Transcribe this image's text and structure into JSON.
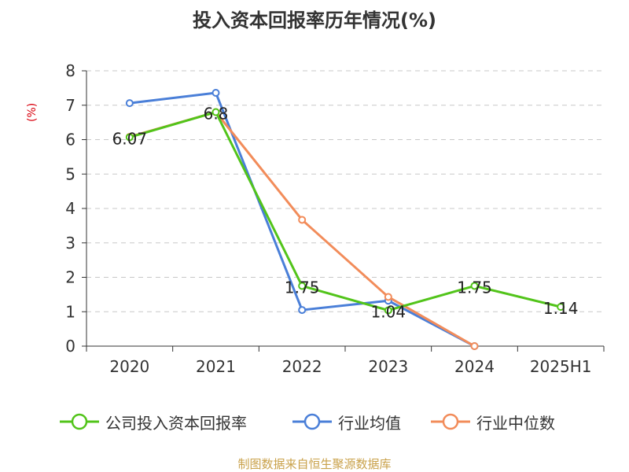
{
  "title": "投入资本回报率历年情况(%)",
  "source_note": "制图数据来自恒生聚源数据库",
  "chart_data": {
    "type": "line",
    "title": "投入资本回报率历年情况(%)",
    "xlabel": "",
    "ylabel": "(%)",
    "categories": [
      "2020",
      "2021",
      "2022",
      "2023",
      "2024",
      "2025H1"
    ],
    "ylim": [
      0,
      8
    ],
    "yticks": [
      "0",
      "1",
      "2",
      "3",
      "4",
      "5",
      "6",
      "7",
      "8"
    ],
    "grid": "horizontal dashed",
    "legend_position": "bottom",
    "series": [
      {
        "name": "公司投入资本回报率",
        "color": "#52c41a",
        "values": [
          6.07,
          6.8,
          1.75,
          1.04,
          1.75,
          1.14
        ],
        "labels": [
          "6.07",
          "6.8",
          "1.75",
          "1.04",
          "1.75",
          "1.14"
        ]
      },
      {
        "name": "行业均值",
        "color": "#4a7fd8",
        "values": [
          7.06,
          7.36,
          1.05,
          1.32,
          0.0,
          null
        ]
      },
      {
        "name": "行业中位数",
        "color": "#f28c5a",
        "values": [
          6.08,
          6.8,
          3.67,
          1.43,
          0.0,
          null
        ]
      }
    ]
  }
}
